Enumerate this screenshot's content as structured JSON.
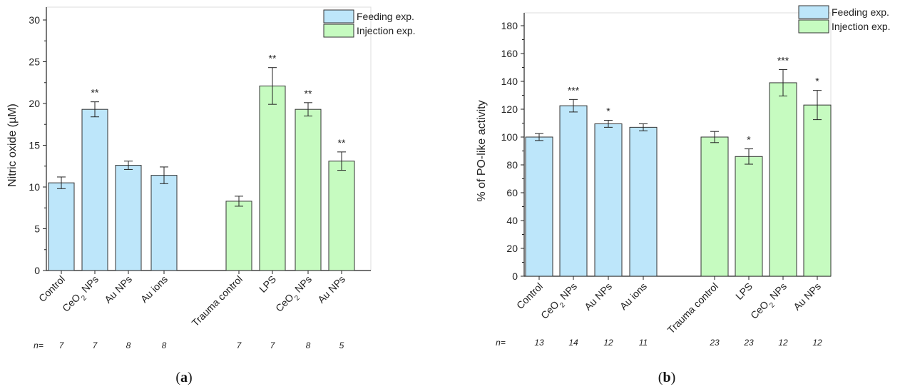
{
  "colors": {
    "feeding": "#BDE6FA",
    "injection": "#C6FBC0",
    "stroke": "#333333"
  },
  "legend": {
    "feeding": "Feeding exp.",
    "injection": "Injection exp."
  },
  "chart_data": [
    {
      "type": "bar",
      "panel_label": "a",
      "ylabel_prefix": "Nitric oxide (",
      "ylabel_unit": "µ",
      "ylabel_suffix": "M)",
      "ylim": [
        0,
        30
      ],
      "yticks": [
        0,
        5,
        10,
        15,
        20,
        25,
        30
      ],
      "n_prefix": "n=",
      "bars": [
        {
          "category": "Control",
          "group": "feeding",
          "value": 10.5,
          "error": 0.7,
          "sig": "",
          "n": "7"
        },
        {
          "category": "CeO2 NPs",
          "cat_main": "CeO",
          "cat_sub": "2",
          "cat_rest": " NPs",
          "group": "feeding",
          "value": 19.3,
          "error": 0.9,
          "sig": "**",
          "n": "7"
        },
        {
          "category": "Au NPs",
          "group": "feeding",
          "value": 12.6,
          "error": 0.5,
          "sig": "",
          "n": "8"
        },
        {
          "category": "Au ions",
          "group": "feeding",
          "value": 11.4,
          "error": 1.0,
          "sig": "",
          "n": "8"
        },
        {
          "category": "Trauma control",
          "group": "injection",
          "value": 8.3,
          "error": 0.6,
          "sig": "",
          "n": "7"
        },
        {
          "category": "LPS",
          "group": "injection",
          "value": 22.1,
          "error": 2.2,
          "sig": "**",
          "n": "7"
        },
        {
          "category": "CeO2 NPs",
          "cat_main": "CeO",
          "cat_sub": "2",
          "cat_rest": " NPs",
          "group": "injection",
          "value": 19.3,
          "error": 0.8,
          "sig": "**",
          "n": "8"
        },
        {
          "category": "Au NPs",
          "group": "injection",
          "value": 13.1,
          "error": 1.1,
          "sig": "**",
          "n": "5"
        }
      ]
    },
    {
      "type": "bar",
      "panel_label": "b",
      "ylabel": "% of PO-like activity",
      "ylim": [
        0,
        180
      ],
      "yticks": [
        0,
        20,
        40,
        60,
        80,
        100,
        120,
        140,
        160,
        180
      ],
      "n_prefix": "n=",
      "bars": [
        {
          "category": "Control",
          "group": "feeding",
          "value": 100,
          "error": 2.5,
          "sig": "",
          "n": "13"
        },
        {
          "category": "CeO2 NPs",
          "cat_main": "CeO",
          "cat_sub": "2",
          "cat_rest": " NPs",
          "group": "feeding",
          "value": 122.5,
          "error": 4.5,
          "sig": "***",
          "n": "14"
        },
        {
          "category": "Au NPs",
          "group": "feeding",
          "value": 109.5,
          "error": 2.5,
          "sig": "*",
          "n": "12"
        },
        {
          "category": "Au ions",
          "group": "feeding",
          "value": 107,
          "error": 2.5,
          "sig": "",
          "n": "11"
        },
        {
          "category": "Trauma control",
          "group": "injection",
          "value": 100,
          "error": 4,
          "sig": "",
          "n": "23"
        },
        {
          "category": "LPS",
          "group": "injection",
          "value": 86,
          "error": 5.5,
          "sig": "*",
          "n": "23"
        },
        {
          "category": "CeO2 NPs",
          "cat_main": "CeO",
          "cat_sub": "2",
          "cat_rest": " NPs",
          "group": "injection",
          "value": 139,
          "error": 9.5,
          "sig": "***",
          "n": "12"
        },
        {
          "category": "Au NPs",
          "group": "injection",
          "value": 123,
          "error": 10.5,
          "sig": "*",
          "n": "12"
        }
      ]
    }
  ]
}
